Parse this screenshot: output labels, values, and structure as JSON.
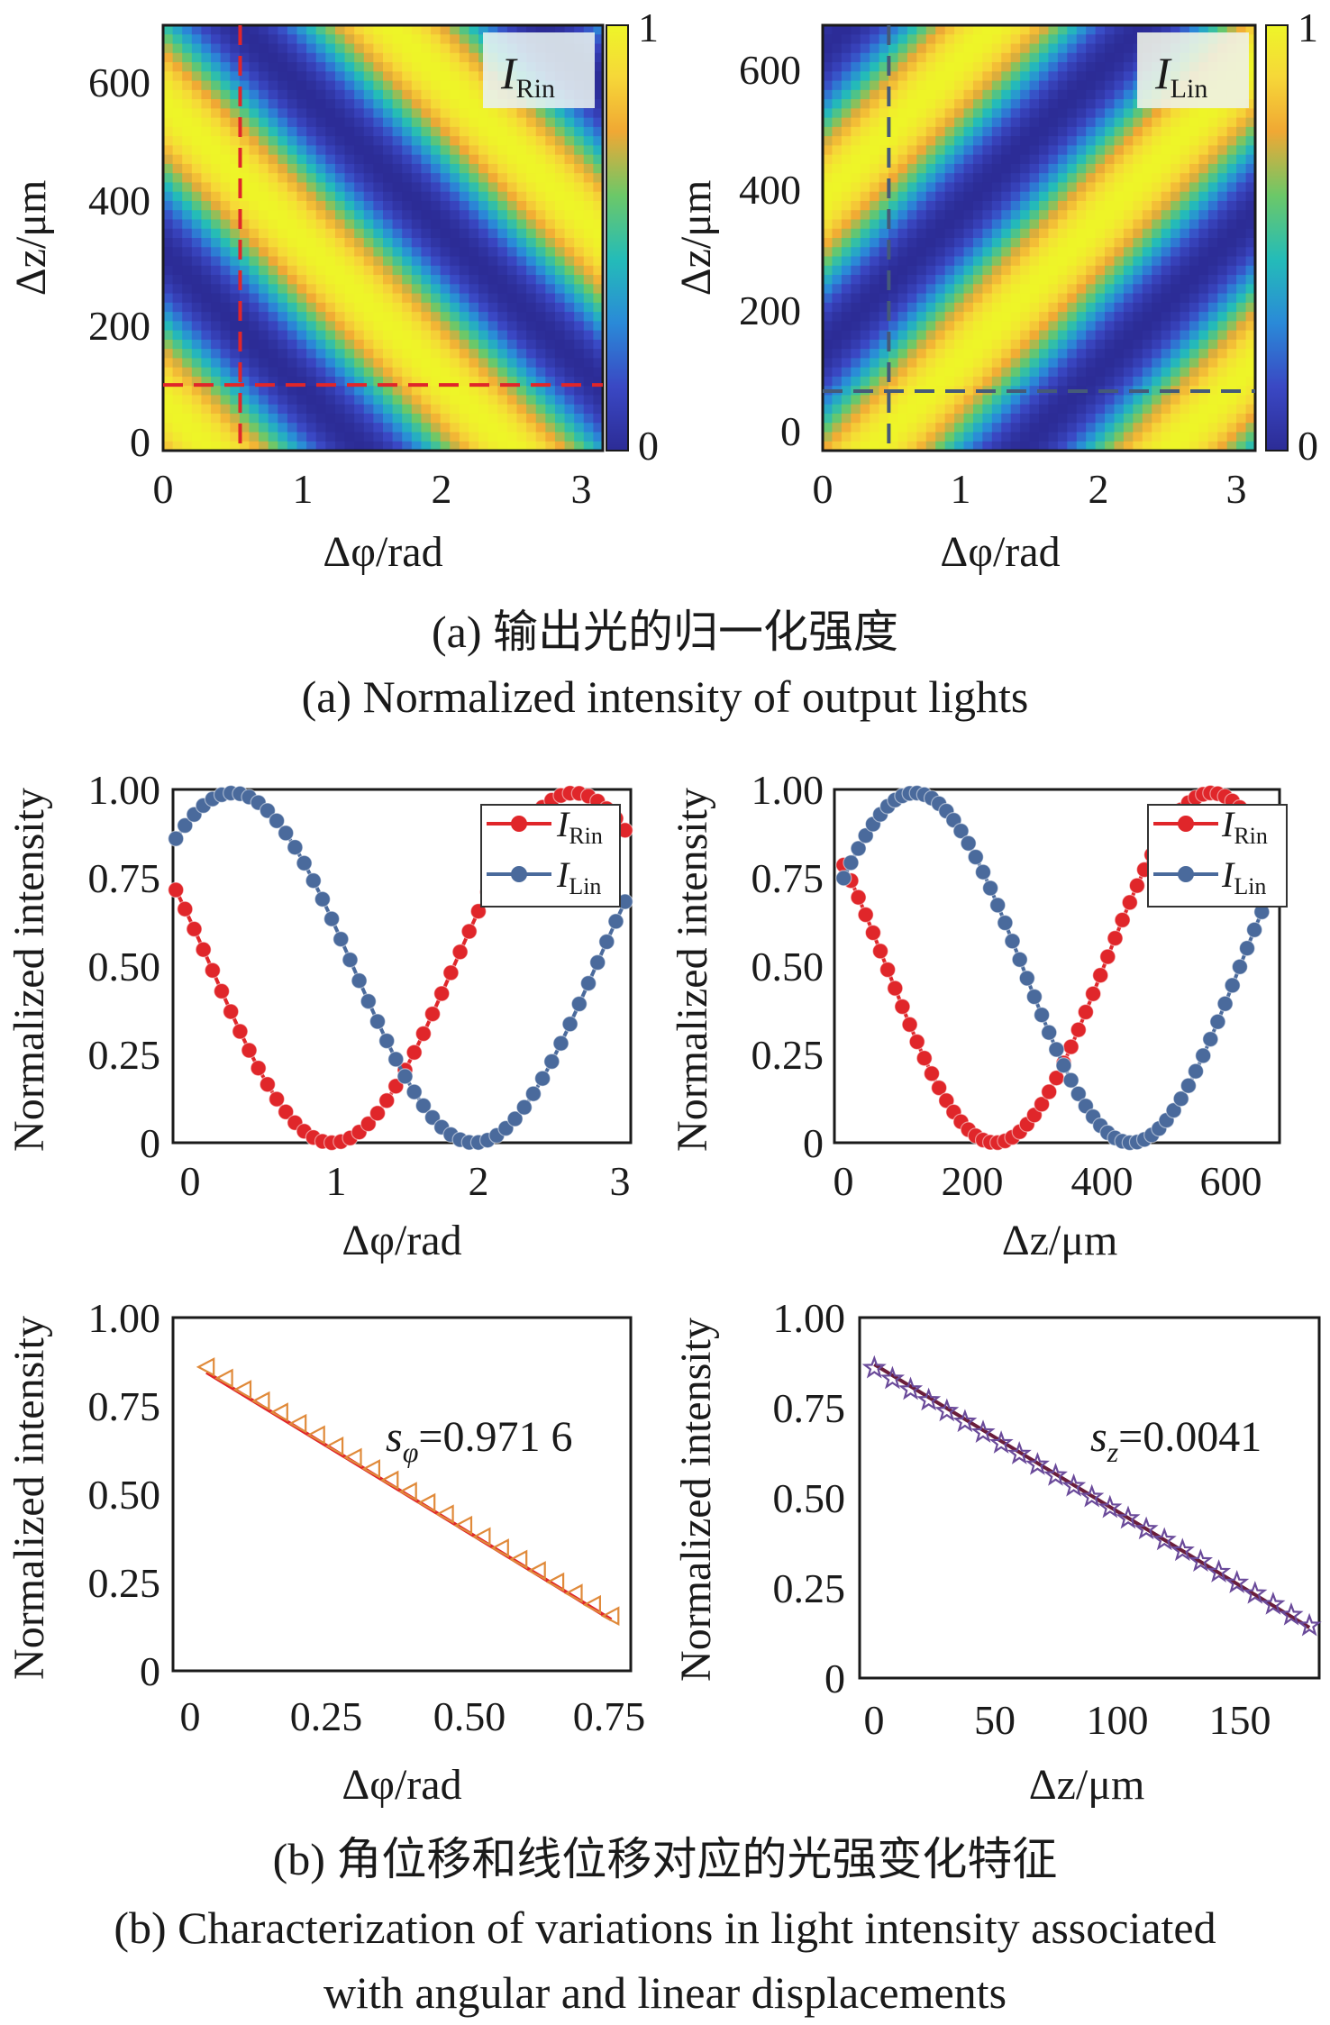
{
  "chart_data": [
    {
      "type": "heatmap",
      "panel": "a-left",
      "label": "I_Rin",
      "label_main": "I",
      "label_sub": "Rin",
      "xlabel": "Δφ/rad",
      "ylabel": "Δz/μm",
      "xlim": [
        0,
        3.14
      ],
      "ylim": [
        0,
        680
      ],
      "xticks": [
        "0",
        "1",
        "2",
        "3"
      ],
      "yticks": [
        "0",
        "200",
        "400",
        "600"
      ],
      "colorbar": {
        "min": "0",
        "max": "1"
      },
      "crosshair": {
        "x": 0.55,
        "y": 105,
        "color": "#e0262a"
      },
      "bands": {
        "slope_dz_per_rad": -222,
        "period_um": 480,
        "phase_rad": 0.35
      }
    },
    {
      "type": "heatmap",
      "panel": "a-right",
      "label": "I_Lin",
      "label_main": "I",
      "label_sub": "Lin",
      "xlabel": "Δφ/rad",
      "ylabel": "Δz/μm",
      "xlim": [
        0,
        3.14
      ],
      "ylim": [
        0,
        680
      ],
      "xticks": [
        "0",
        "1",
        "2",
        "3"
      ],
      "yticks": [
        "0",
        "200",
        "400",
        "600"
      ],
      "colorbar": {
        "min": "0",
        "max": "1"
      },
      "crosshair": {
        "x": 0.48,
        "y": 95,
        "color": "#455a78"
      },
      "bands": {
        "slope_dz_per_rad": 222,
        "period_um": 480,
        "phase_rad": 0.35
      }
    },
    {
      "type": "line",
      "panel": "b-top-left",
      "xlabel": "Δφ/rad",
      "ylabel": "Normalized intensity",
      "xlim": [
        -0.12,
        3.1
      ],
      "ylim": [
        0,
        1.0
      ],
      "xticks": [
        "0",
        "1",
        "2",
        "3"
      ],
      "yticks": [
        "0",
        "0.25",
        "0.50",
        "0.75",
        "1.00"
      ],
      "legend_position": "top-right",
      "series": [
        {
          "name_main": "I",
          "name_sub": "Rin",
          "color": "#e0262a",
          "x_range": [
            -0.1,
            3.06
          ],
          "n_points": 50,
          "minimum_x": 1.0,
          "period": 3.4,
          "min_level": 0,
          "max_level": 0.99
        },
        {
          "name_main": "I",
          "name_sub": "Lin",
          "color": "#4a6a9c",
          "x_range": [
            -0.1,
            3.06
          ],
          "n_points": 50,
          "minimum_x": 2.0,
          "period": 3.4,
          "min_level": 0,
          "max_level": 0.99
        }
      ]
    },
    {
      "type": "line",
      "panel": "b-top-right",
      "xlabel": "Δz/μm",
      "ylabel": "Normalized intensity",
      "xlim": [
        -15,
        705
      ],
      "ylim": [
        0,
        1.0
      ],
      "xticks": [
        "0",
        "200",
        "400",
        "600"
      ],
      "yticks": [
        "0",
        "0.25",
        "0.50",
        "0.75",
        "1.00"
      ],
      "legend_position": "top-right",
      "series": [
        {
          "name_main": "I",
          "name_sub": "Rin",
          "color": "#e0262a",
          "x_range": [
            0,
            700
          ],
          "n_points": 60,
          "minimum_x": 245,
          "period": 700,
          "min_level": 0,
          "max_level": 0.99
        },
        {
          "name_main": "I",
          "name_sub": "Lin",
          "color": "#4a6a9c",
          "x_range": [
            0,
            700
          ],
          "n_points": 60,
          "minimum_x": 465,
          "period": 700,
          "min_level": 0,
          "max_level": 0.99
        }
      ]
    },
    {
      "type": "scatter",
      "panel": "b-bottom-left",
      "xlabel": "Δφ/rad",
      "ylabel": "Normalized intensity",
      "xlim": [
        -0.04,
        0.78
      ],
      "ylim": [
        0,
        1.0
      ],
      "xticks": [
        "0",
        "0.25",
        "0.50",
        "0.75"
      ],
      "yticks": [
        "0",
        "0.25",
        "0.50",
        "0.75",
        "1.00"
      ],
      "annotation": {
        "text_main": "s",
        "text_sub": "φ",
        "text_value": "=0.971 6"
      },
      "fit": {
        "color": "#e0262a",
        "x": [
          0.02,
          0.745
        ],
        "y": [
          0.845,
          0.145
        ]
      },
      "markers": {
        "shape": "triangle-left",
        "color": "#e08a3a",
        "x_start": 0.02,
        "x_end": 0.745,
        "y_start": 0.86,
        "y_end": 0.155,
        "count": 23
      }
    },
    {
      "type": "scatter",
      "panel": "b-bottom-right",
      "xlabel": "Δz/μm",
      "ylabel": "Normalized intensity",
      "xlim": [
        -6,
        182
      ],
      "ylim": [
        0,
        1.0
      ],
      "xticks": [
        "0",
        "50",
        "100",
        "150"
      ],
      "yticks": [
        "0",
        "0.25",
        "0.50",
        "0.75",
        "1.00"
      ],
      "annotation": {
        "text_main": "s",
        "text_sub": "z",
        "text_value": "=0.0041"
      },
      "fit": {
        "color": "#6a1e3c",
        "x": [
          0,
          178
        ],
        "y": [
          0.87,
          0.14
        ]
      },
      "markers": {
        "shape": "star",
        "color": "#6a4a9a",
        "x_start": 0,
        "x_end": 178,
        "y_start": 0.86,
        "y_end": 0.145,
        "count": 25
      }
    }
  ],
  "captions": {
    "a_zh": "(a) 输出光的归一化强度",
    "a_en": "(a) Normalized intensity of output lights",
    "b_zh": "(b) 角位移和线位移对应的光强变化特征",
    "b_en_1": "(b) Characterization of variations in light intensity associated",
    "b_en_2": "with angular and linear displacements"
  }
}
